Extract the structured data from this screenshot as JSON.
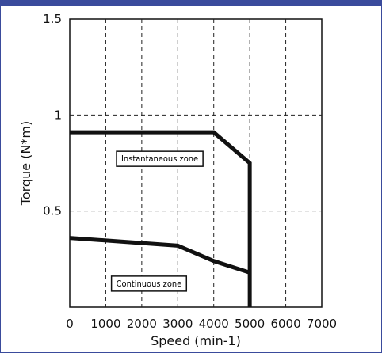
{
  "chart_data": {
    "type": "line",
    "xlabel": "Speed (min-1)",
    "ylabel": "Torque (N*m)",
    "xlim": [
      0,
      7000
    ],
    "ylim": [
      0,
      1.5
    ],
    "x_ticks": [
      0,
      1000,
      2000,
      3000,
      4000,
      5000,
      6000,
      7000
    ],
    "y_ticks": [
      0.5,
      1,
      1.5
    ],
    "x_tick_labels": [
      "0",
      "1000",
      "2000",
      "3000",
      "4000",
      "5000",
      "6000",
      "7000"
    ],
    "y_tick_labels": [
      "0.5",
      "1",
      "1.5"
    ],
    "grid": true,
    "series": [
      {
        "name": "",
        "x": [
          0,
          4000,
          5000,
          5000
        ],
        "y": [
          0.91,
          0.91,
          0.75,
          0
        ]
      },
      {
        "name": "",
        "x": [
          0,
          3000,
          4000,
          5000
        ],
        "y": [
          0.36,
          0.32,
          0.24,
          0.18
        ]
      }
    ],
    "annotations": [
      {
        "text": "Instantaneous zone",
        "x": 2500,
        "y": 0.77
      },
      {
        "text": "Continuous zone",
        "x": 2200,
        "y": 0.12
      }
    ],
    "line_color": "#111111",
    "frame_color": "#3a4b9c"
  }
}
